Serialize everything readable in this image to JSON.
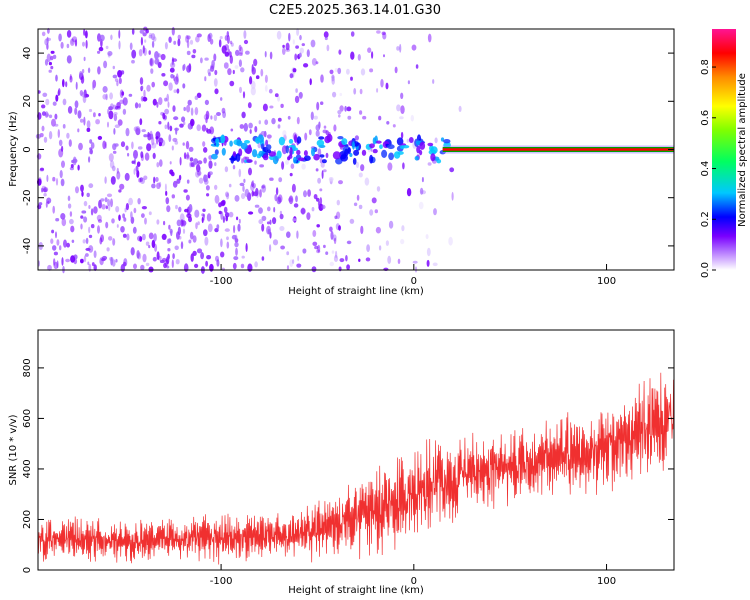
{
  "title": "C2E5.2025.363.14.01.G30",
  "chart_data": [
    {
      "type": "heatmap",
      "title": "C2E5.2025.363.14.01.G30",
      "xlabel": "Height of straight line (km)",
      "ylabel": "Frequency (Hz)",
      "xlim": [
        -195,
        135
      ],
      "ylim": [
        -50,
        50
      ],
      "xticks": [
        -100,
        0,
        100
      ],
      "yticks": [
        -40,
        -20,
        0,
        20,
        40
      ],
      "colorbar": {
        "label": "Normalized spectral amplitude",
        "range": [
          0,
          0.95
        ],
        "ticks": [
          "0.0",
          "0.2",
          "0.4",
          "0.6",
          "0.8"
        ],
        "colormap": [
          "#ffffff",
          "#7a00ff",
          "#0000ff",
          "#00c8ff",
          "#00ff00",
          "#ffff00",
          "#ff8c00",
          "#ff0000",
          "#ff1493"
        ]
      },
      "features": [
        {
          "description": "carrier line at 0 Hz",
          "x_range": [
            15,
            135
          ],
          "frequency": 0,
          "amplitude": 0.9
        },
        {
          "description": "noise scatter",
          "x_range": [
            -195,
            10
          ],
          "frequency_range": [
            -50,
            50
          ]
        }
      ]
    },
    {
      "type": "line",
      "xlabel": "Height of straight line (km)",
      "ylabel": "SNR (10 * v/v)",
      "xlim": [
        -195,
        135
      ],
      "ylim": [
        0,
        950
      ],
      "xticks": [
        -100,
        0,
        100
      ],
      "yticks": [
        0,
        200,
        400,
        600,
        800
      ],
      "series": [
        {
          "name": "SNR",
          "color": "#f03030",
          "x": [
            -195,
            -150,
            -100,
            -60,
            -40,
            -20,
            0,
            20,
            40,
            60,
            80,
            100,
            120,
            135
          ],
          "mean": [
            120,
            115,
            125,
            140,
            175,
            230,
            300,
            370,
            400,
            420,
            450,
            490,
            560,
            620
          ],
          "spread": [
            80,
            75,
            80,
            90,
            110,
            150,
            170,
            150,
            130,
            130,
            140,
            150,
            170,
            200
          ]
        }
      ]
    }
  ]
}
